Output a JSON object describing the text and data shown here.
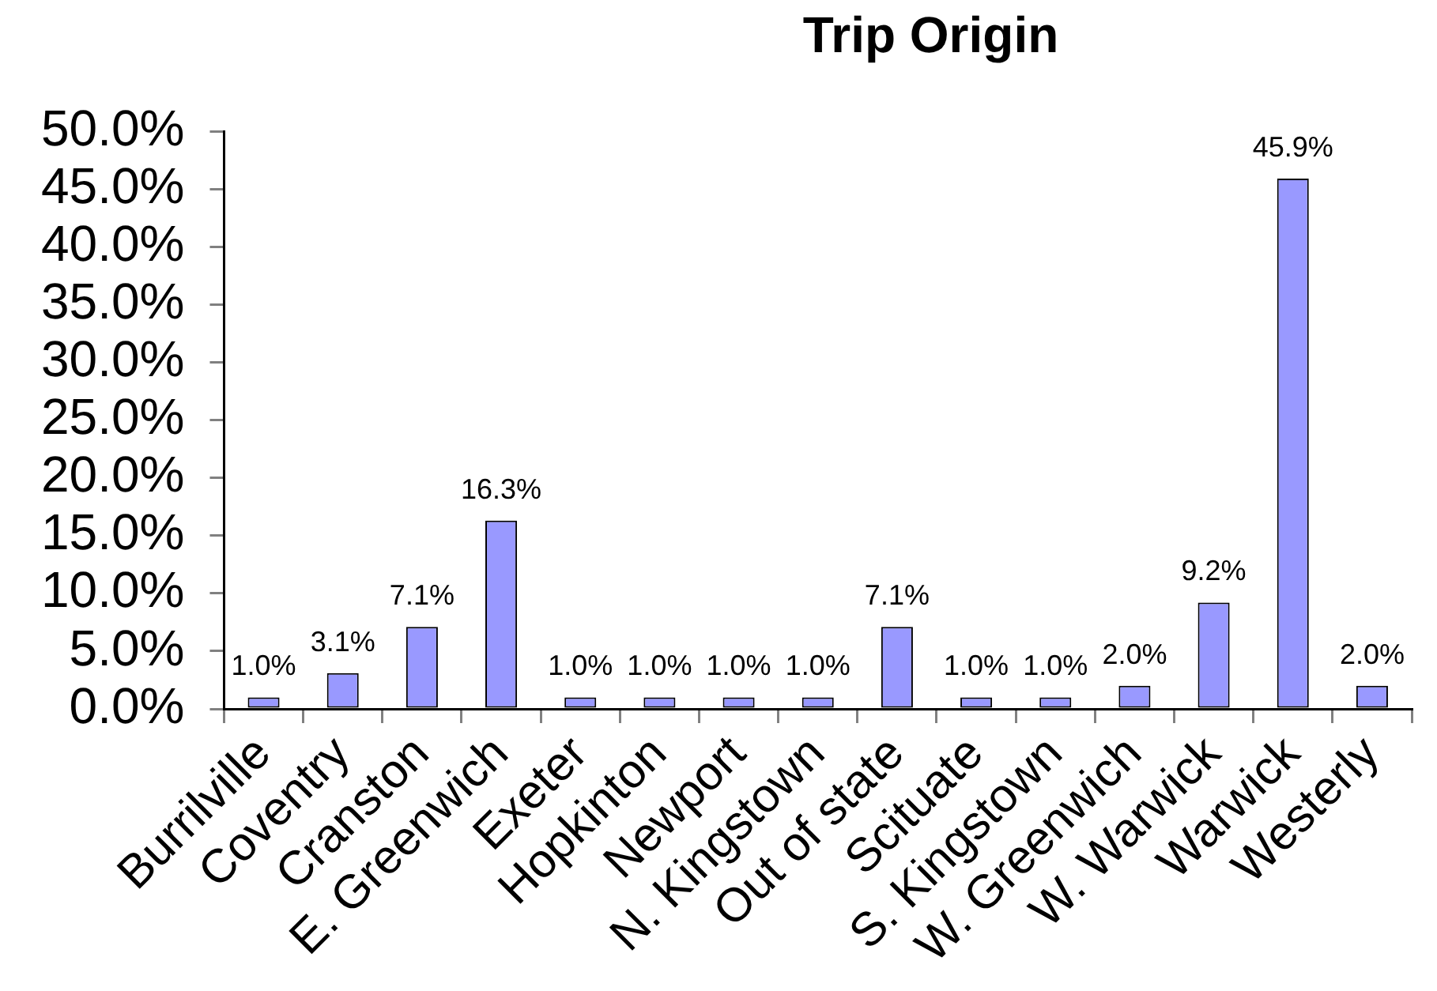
{
  "chart_data": {
    "type": "bar",
    "title": "Trip Origin",
    "categories": [
      "Burrilville",
      "Coventry",
      "Cranston",
      "E. Greenwich",
      "Exeter",
      "Hopkinton",
      "Newport",
      "N. Kingstown",
      "Out of state",
      "Scituate",
      "S. Kingstown",
      "W. Greenwich",
      "W. Warwick",
      "Warwick",
      "Westerly"
    ],
    "values": [
      1.0,
      3.1,
      7.1,
      16.3,
      1.0,
      1.0,
      1.0,
      1.0,
      7.1,
      1.0,
      1.0,
      2.0,
      9.2,
      45.9,
      2.0
    ],
    "value_labels": [
      "1.0%",
      "3.1%",
      "7.1%",
      "16.3%",
      "1.0%",
      "1.0%",
      "1.0%",
      "1.0%",
      "7.1%",
      "1.0%",
      "1.0%",
      "2.0%",
      "9.2%",
      "45.9%",
      "2.0%"
    ],
    "color": "#9999ff",
    "ylim": [
      0,
      50
    ],
    "yticks": [
      {
        "value": 0,
        "label": "0.0%"
      },
      {
        "value": 5,
        "label": "5.0%"
      },
      {
        "value": 10,
        "label": "10.0%"
      },
      {
        "value": 15,
        "label": "15.0%"
      },
      {
        "value": 20,
        "label": "20.0%"
      },
      {
        "value": 25,
        "label": "25.0%"
      },
      {
        "value": 30,
        "label": "30.0%"
      },
      {
        "value": 35,
        "label": "35.0%"
      },
      {
        "value": 40,
        "label": "40.0%"
      },
      {
        "value": 45,
        "label": "45.0%"
      },
      {
        "value": 50,
        "label": "50.0%"
      }
    ],
    "grid": false,
    "legend": false
  }
}
